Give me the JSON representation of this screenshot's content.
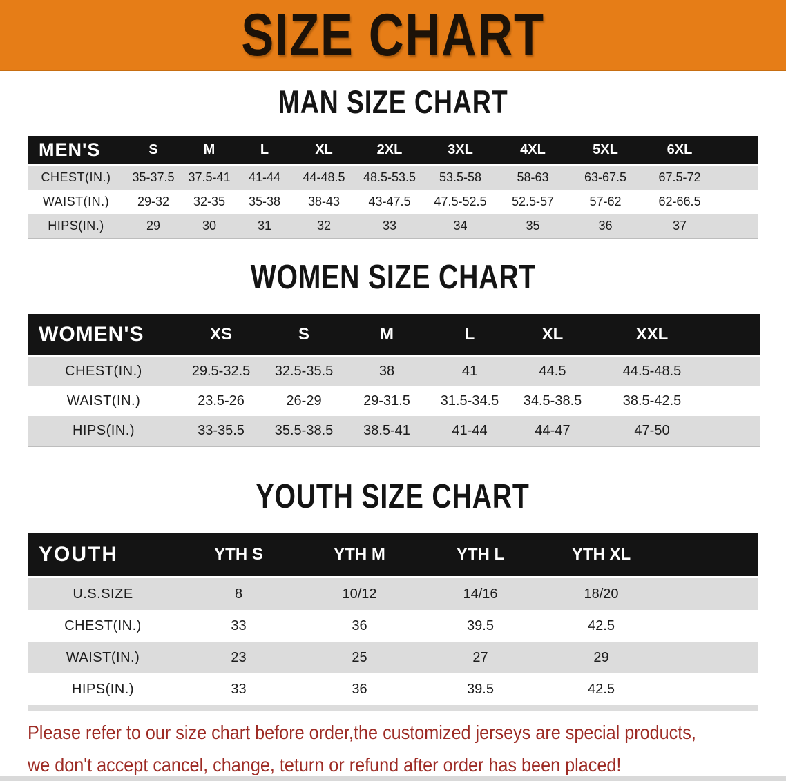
{
  "banner": {
    "title": "SIZE CHART"
  },
  "sections": {
    "men": {
      "heading": "MAN SIZE CHART",
      "table": {
        "label": "MEN'S",
        "columns": [
          "S",
          "M",
          "L",
          "XL",
          "2XL",
          "3XL",
          "4XL",
          "5XL",
          "6XL"
        ],
        "rows": [
          {
            "label": "CHEST(IN.)",
            "values": [
              "35-37.5",
              "37.5-41",
              "41-44",
              "44-48.5",
              "48.5-53.5",
              "53.5-58",
              "58-63",
              "63-67.5",
              "67.5-72"
            ]
          },
          {
            "label": "WAIST(IN.)",
            "values": [
              "29-32",
              "32-35",
              "35-38",
              "38-43",
              "43-47.5",
              "47.5-52.5",
              "52.5-57",
              "57-62",
              "62-66.5"
            ]
          },
          {
            "label": "HIPS(IN.)",
            "values": [
              "29",
              "30",
              "31",
              "32",
              "33",
              "34",
              "35",
              "36",
              "37"
            ]
          }
        ]
      }
    },
    "women": {
      "heading": "WOMEN SIZE CHART",
      "table": {
        "label": "WOMEN'S",
        "columns": [
          "XS",
          "S",
          "M",
          "L",
          "XL",
          "XXL"
        ],
        "rows": [
          {
            "label": "CHEST(IN.)",
            "values": [
              "29.5-32.5",
              "32.5-35.5",
              "38",
              "41",
              "44.5",
              "44.5-48.5"
            ]
          },
          {
            "label": "WAIST(IN.)",
            "values": [
              "23.5-26",
              "26-29",
              "29-31.5",
              "31.5-34.5",
              "34.5-38.5",
              "38.5-42.5"
            ]
          },
          {
            "label": "HIPS(IN.)",
            "values": [
              "33-35.5",
              "35.5-38.5",
              "38.5-41",
              "41-44",
              "44-47",
              "47-50"
            ]
          }
        ]
      }
    },
    "youth": {
      "heading": "YOUTH SIZE CHART",
      "table": {
        "label": "YOUTH",
        "columns": [
          "YTH S",
          "YTH M",
          "YTH L",
          "YTH XL"
        ],
        "rows": [
          {
            "label": "U.S.SIZE",
            "values": [
              "8",
              "10/12",
              "14/16",
              "18/20"
            ]
          },
          {
            "label": "CHEST(IN.)",
            "values": [
              "33",
              "36",
              "39.5",
              "42.5"
            ]
          },
          {
            "label": "WAIST(IN.)",
            "values": [
              "23",
              "25",
              "27",
              "29"
            ]
          },
          {
            "label": "HIPS(IN.)",
            "values": [
              "33",
              "36",
              "39.5",
              "42.5"
            ]
          }
        ]
      }
    }
  },
  "disclaimer": {
    "line1": "Please refer to our size chart before order,the customized jerseys are special products,",
    "line2": "we don't accept cancel, change, teturn or refund after order has been placed!"
  },
  "colors": {
    "banner_bg": "#e67d17",
    "header_band": "#141414",
    "row_stripe": "#dcdcdc",
    "row_white": "#ffffff",
    "disclaimer_text": "#9d2b24"
  }
}
